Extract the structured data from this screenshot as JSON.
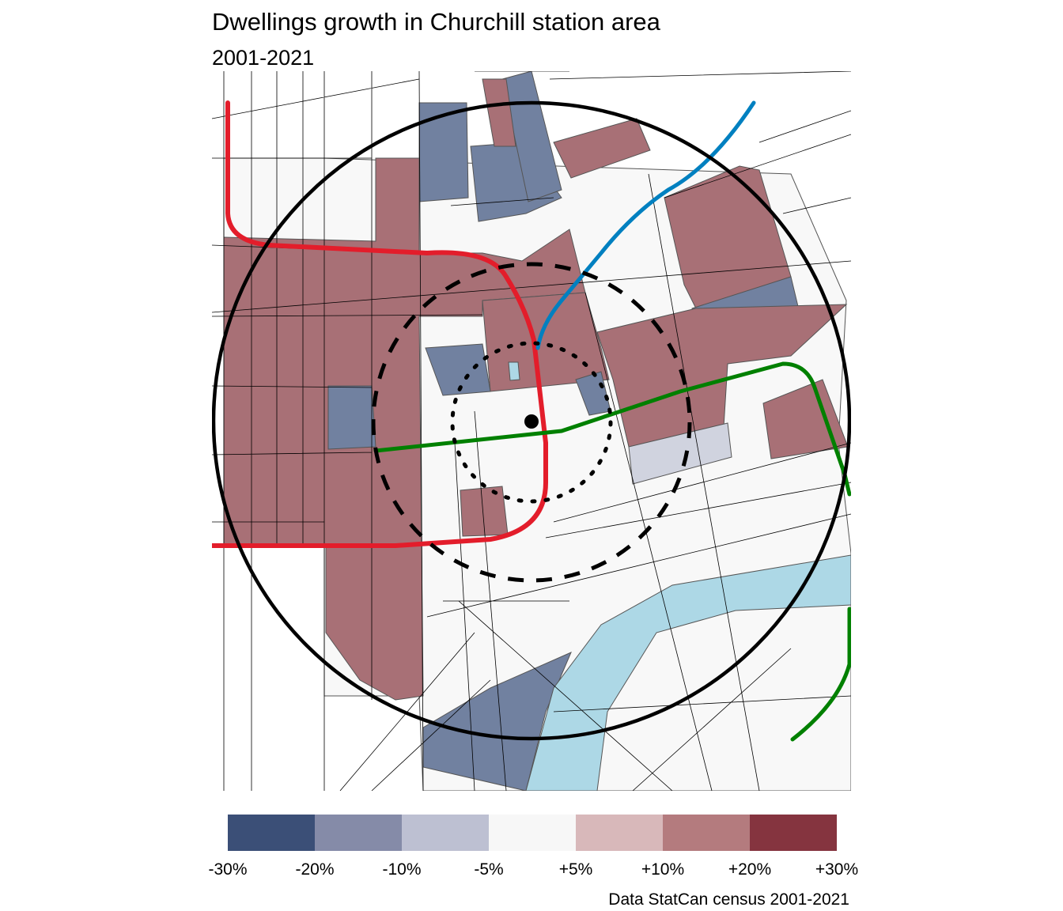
{
  "title": "Dwellings growth in Churchill station area",
  "subtitle": "2001-2021",
  "caption": "Data StatCan census 2001-2021",
  "colors": {
    "growth_high": "#a87076",
    "decline": "#7181a0",
    "slight_decline": "#d0d3df",
    "neutral": "#f8f8f8",
    "water": "#add8e6",
    "red_line": "#e31d2b",
    "blue_line": "#0080c0",
    "green_line": "#008000"
  },
  "legend": {
    "swatches": [
      "#3b4f77",
      "#858ba8",
      "#bdc0d2",
      "#f7f7f7",
      "#d8b8ba",
      "#b47b7e",
      "#85343f"
    ],
    "labels": [
      "-30%",
      "-20%",
      "-10%",
      "-5%",
      "+5%",
      "+10%",
      "+20%",
      "+30%"
    ]
  },
  "map": {
    "station_marker": "station-point",
    "rings": [
      "outer-ring-solid",
      "middle-ring-dashed",
      "inner-ring-dotted"
    ]
  }
}
